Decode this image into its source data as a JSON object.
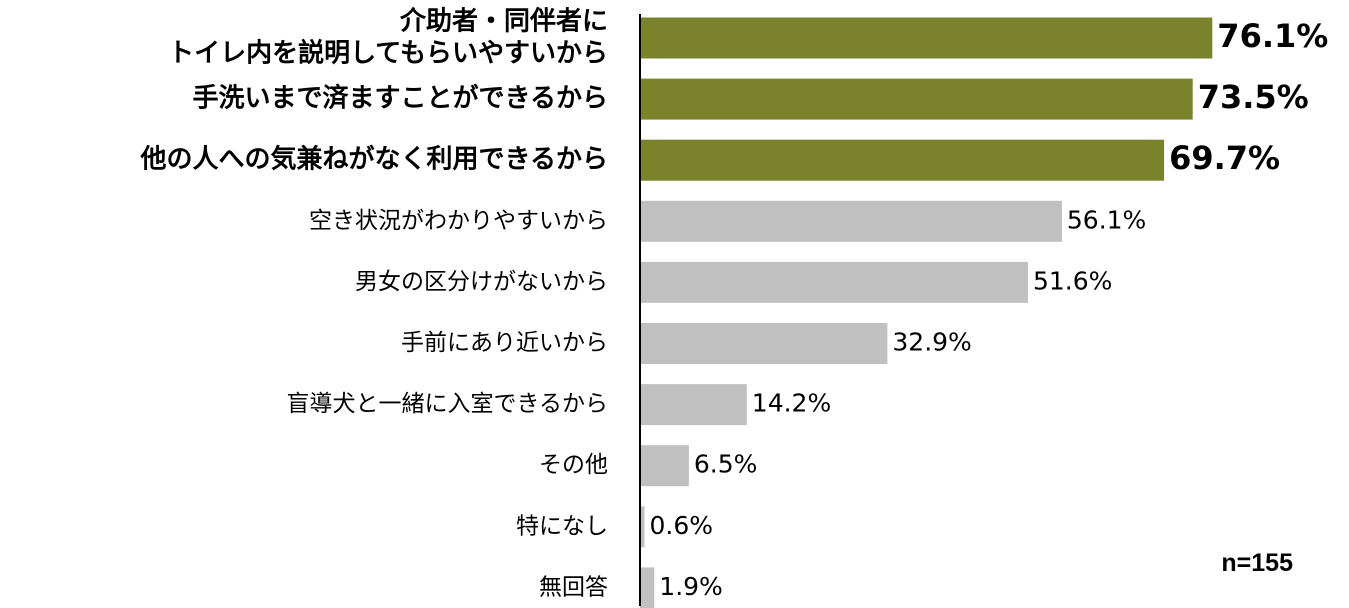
{
  "chart_data": {
    "type": "bar",
    "orientation": "horizontal",
    "categories": [
      [
        "介助者・同伴者に",
        "トイレ内を説明してもらいやすいから"
      ],
      [
        "手洗いまで済ますことができるから"
      ],
      [
        "他の人への気兼ねがなく利用できるから"
      ],
      [
        "空き状況がわかりやすいから"
      ],
      [
        "男女の区分けがないから"
      ],
      [
        "手前にあり近いから"
      ],
      [
        "盲導犬と一緒に入室できるから"
      ],
      [
        "その他"
      ],
      [
        "特になし"
      ],
      [
        "無回答"
      ]
    ],
    "values": [
      76.1,
      73.5,
      69.7,
      56.1,
      51.6,
      32.9,
      14.2,
      6.5,
      0.6,
      1.9
    ],
    "value_labels": [
      "76.1%",
      "73.5%",
      "69.7%",
      "56.1%",
      "51.6%",
      "32.9%",
      "14.2%",
      "6.5%",
      "0.6%",
      "1.9%"
    ],
    "highlighted": [
      true,
      true,
      true,
      false,
      false,
      false,
      false,
      false,
      false,
      false
    ],
    "xlim": [
      0,
      100
    ],
    "grid": false,
    "colors": {
      "highlight": "#7a822c",
      "normal": "#c0c0c0",
      "axis": "#000000"
    },
    "note": "n=155"
  }
}
